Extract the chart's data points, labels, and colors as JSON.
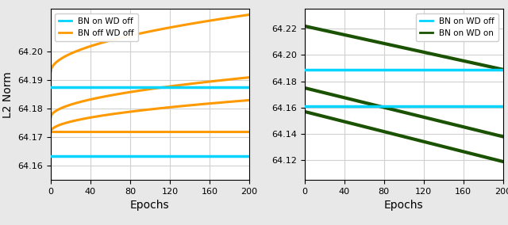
{
  "left": {
    "ylabel": "L2 Norm",
    "xlabel": "Epochs",
    "ylim": [
      64.155,
      64.215
    ],
    "xlim": [
      0,
      200
    ],
    "yticks": [
      64.16,
      64.17,
      64.18,
      64.19,
      64.2
    ],
    "xticks": [
      0,
      40,
      80,
      120,
      160,
      200
    ],
    "cyan_lines": [
      64.1875,
      64.1635
    ],
    "orange_lines": [
      [
        64.193,
        64.213
      ],
      [
        64.177,
        64.191
      ],
      [
        64.172,
        64.183
      ],
      [
        64.172,
        64.172
      ]
    ],
    "legend": [
      "BN on WD off",
      "BN off WD off"
    ]
  },
  "right": {
    "xlabel": "Epochs",
    "ylim": [
      64.105,
      64.235
    ],
    "xlim": [
      0,
      200
    ],
    "yticks": [
      64.12,
      64.14,
      64.16,
      64.18,
      64.2,
      64.22
    ],
    "xticks": [
      0,
      40,
      80,
      120,
      160,
      200
    ],
    "cyan_lines": [
      64.189,
      64.161
    ],
    "green_lines": [
      [
        64.222,
        64.189
      ],
      [
        64.175,
        64.138
      ],
      [
        64.157,
        64.119
      ]
    ],
    "legend": [
      "BN on WD off",
      "BN on WD on"
    ]
  },
  "bg_color": "#ffffff",
  "outer_bg": "#e8e8e8",
  "grid_color": "#d0d0d0",
  "cyan_color": "#00d4ff",
  "orange_color": "#ff9900",
  "green_color": "#1a5200",
  "linewidth_cyan": 2.5,
  "linewidth_orange": 2.2,
  "linewidth_green": 3.0
}
